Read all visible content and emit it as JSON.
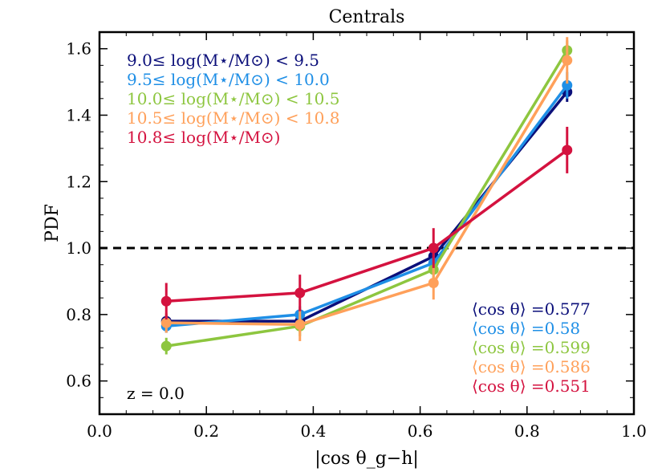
{
  "chart_data": {
    "type": "line",
    "title": "Centrals",
    "xlabel": "|cos θ_g−h|",
    "ylabel": "PDF",
    "xlim": [
      0.0,
      1.0
    ],
    "ylim": [
      0.5,
      1.65
    ],
    "xticks": [
      "0.0",
      "0.2",
      "0.4",
      "0.6",
      "0.8",
      "1.0"
    ],
    "yticks": [
      "0.6",
      "0.8",
      "1.0",
      "1.2",
      "1.4",
      "1.6"
    ],
    "x": [
      0.125,
      0.375,
      0.625,
      0.875
    ],
    "reference_line": {
      "y": 1.0,
      "style": "dashed",
      "color": "#000000"
    },
    "annotation": "z = 0.0",
    "series": [
      {
        "name": "9.0≤ log(M⋆/M⊙) < 9.5",
        "color": "#0b0f7a",
        "values": [
          0.78,
          0.78,
          0.975,
          1.47
        ],
        "errors": [
          0.02,
          0.02,
          0.03,
          0.03
        ],
        "mean_label": "⟨cos θ⟩ =0.577"
      },
      {
        "name": "9.5≤ log(M⋆/M⊙) < 10.0",
        "color": "#1f8fe6",
        "values": [
          0.765,
          0.8,
          0.955,
          1.49
        ],
        "errors": [
          0.02,
          0.025,
          0.03,
          0.04
        ],
        "mean_label": "⟨cos θ⟩ =0.58"
      },
      {
        "name": "10.0≤ log(M⋆/M⊙) < 10.5",
        "color": "#8dc63f",
        "values": [
          0.705,
          0.765,
          0.935,
          1.595
        ],
        "errors": [
          0.025,
          0.03,
          0.03,
          0.03
        ],
        "mean_label": "⟨cos θ⟩ =0.599"
      },
      {
        "name": "10.5≤ log(M⋆/M⊙) < 10.8",
        "color": "#ffa05a",
        "values": [
          0.775,
          0.77,
          0.895,
          1.565
        ],
        "errors": [
          0.03,
          0.05,
          0.05,
          0.07
        ],
        "mean_label": "⟨cos θ⟩ =0.586"
      },
      {
        "name": "10.8≤ log(M⋆/M⊙)",
        "color": "#d4123f",
        "values": [
          0.84,
          0.865,
          1.0,
          1.295
        ],
        "errors": [
          0.055,
          0.055,
          0.06,
          0.07
        ],
        "mean_label": "⟨cos θ⟩ =0.551"
      }
    ]
  }
}
